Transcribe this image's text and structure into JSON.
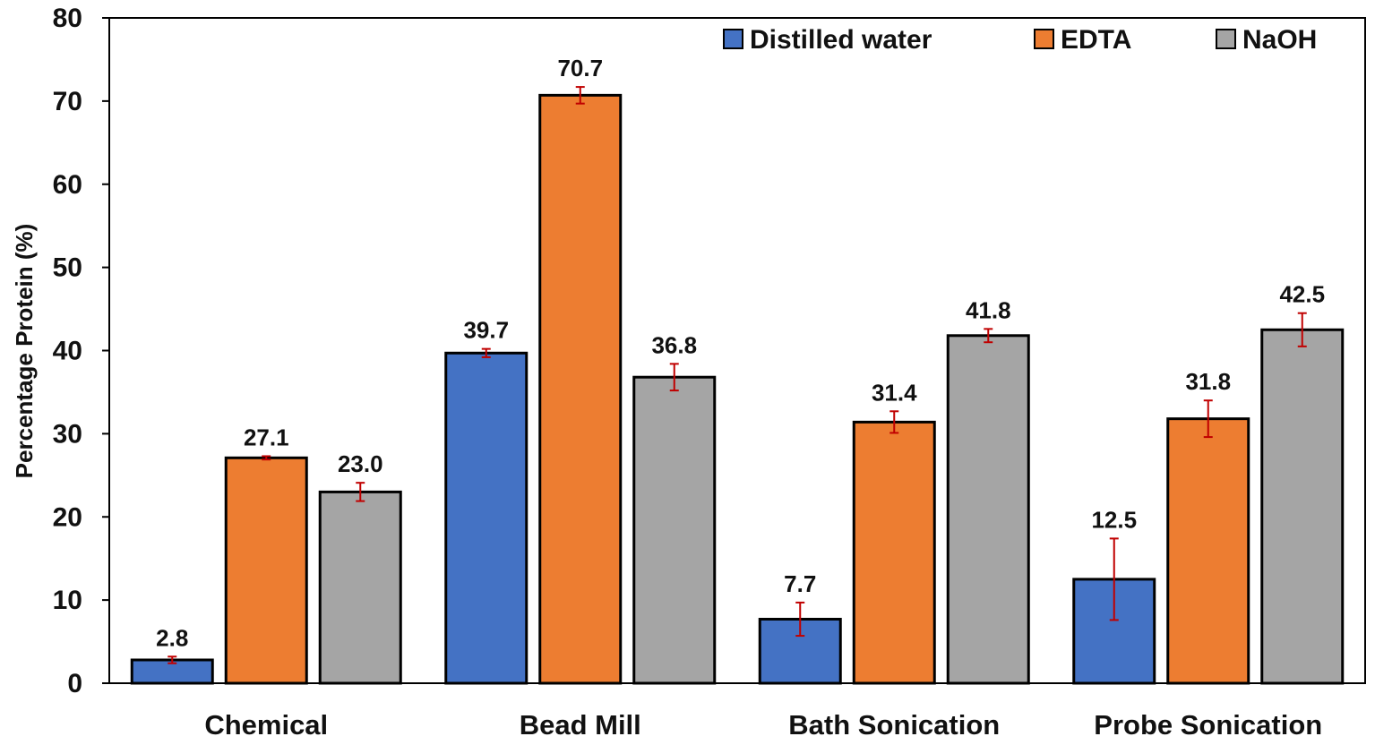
{
  "chart_data": {
    "type": "bar",
    "title": "",
    "xlabel": "",
    "ylabel": "Percentage Protein (%)",
    "ylim": [
      0,
      80
    ],
    "yticks": [
      0,
      10,
      20,
      30,
      40,
      50,
      60,
      70,
      80
    ],
    "grid": false,
    "legend_position": "top-right",
    "categories": [
      "Chemical",
      "Bead Mill",
      "Bath Sonication",
      "Probe Sonication"
    ],
    "series": [
      {
        "name": "Distilled water",
        "color": "#4472c4",
        "values": [
          2.8,
          39.7,
          7.7,
          12.5
        ],
        "labels": [
          "2.8",
          "39.7",
          "7.7",
          "12.5"
        ],
        "errors": [
          0.4,
          0.5,
          2.0,
          4.9
        ]
      },
      {
        "name": "EDTA",
        "color": "#ed7d31",
        "values": [
          27.1,
          70.7,
          31.4,
          31.8
        ],
        "labels": [
          "27.1",
          "70.7",
          "31.4",
          "31.8"
        ],
        "errors": [
          0.2,
          1.0,
          1.3,
          2.2
        ]
      },
      {
        "name": "NaOH",
        "color": "#a5a5a5",
        "values": [
          23.0,
          36.8,
          41.8,
          42.5
        ],
        "labels": [
          "23.0",
          "36.8",
          "41.8",
          "42.5"
        ],
        "errors": [
          1.1,
          1.6,
          0.8,
          2.0
        ]
      }
    ],
    "error_bar_color": "#c00000"
  }
}
